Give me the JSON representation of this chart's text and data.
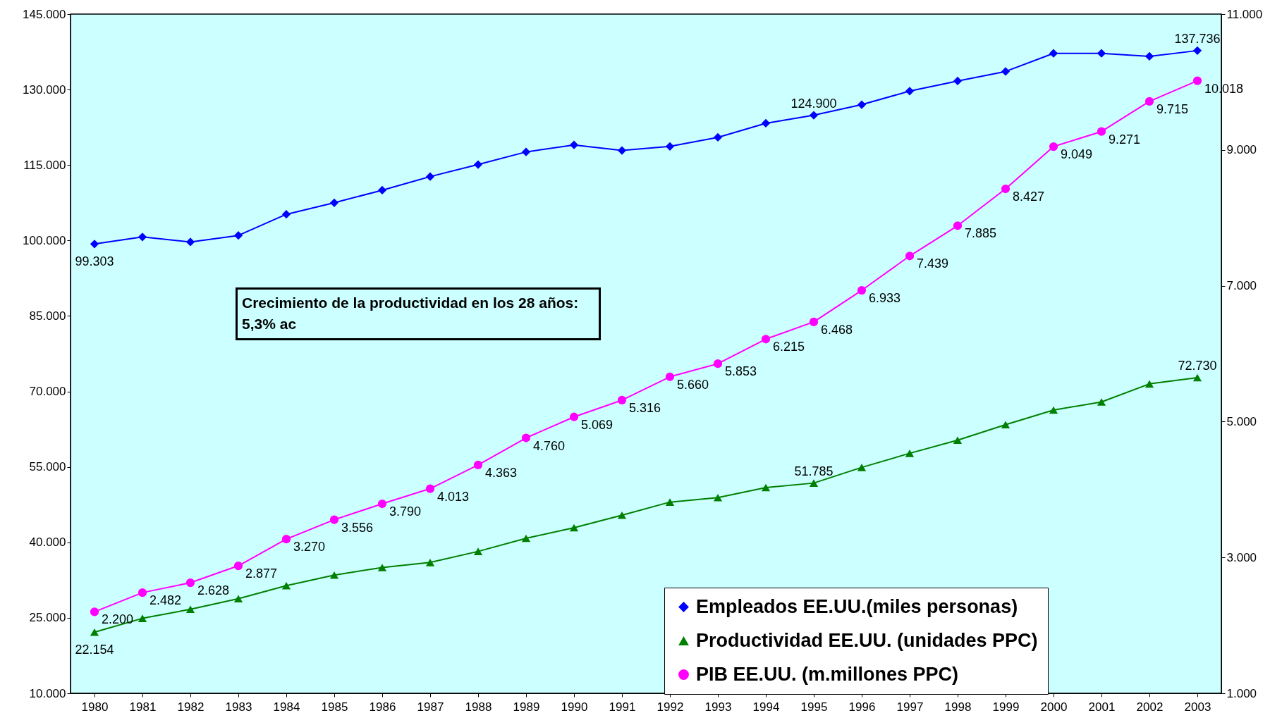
{
  "chart_data": {
    "type": "line",
    "categories": [
      "1980",
      "1981",
      "1982",
      "1983",
      "1984",
      "1985",
      "1986",
      "1987",
      "1988",
      "1989",
      "1990",
      "1991",
      "1992",
      "1993",
      "1994",
      "1995",
      "1996",
      "1997",
      "1998",
      "1999",
      "2000",
      "2001",
      "2002",
      "2003"
    ],
    "series": [
      {
        "name": "Empleados EE.UU.(miles personas)",
        "color": "#0000ff",
        "marker": "diamond",
        "values": [
          99303,
          100700,
          99700,
          101000,
          105200,
          107500,
          110000,
          112700,
          115100,
          117600,
          119000,
          117900,
          118700,
          120500,
          123300,
          124900,
          127000,
          129700,
          131700,
          133600,
          137200,
          137200,
          136600,
          137736
        ],
        "value_labels": [
          "99.303",
          null,
          null,
          null,
          null,
          null,
          null,
          null,
          null,
          null,
          null,
          null,
          null,
          null,
          null,
          "124.900",
          null,
          null,
          null,
          null,
          null,
          null,
          null,
          "137.736"
        ]
      },
      {
        "name": "Productividad EE.UU. (unidades PPC)",
        "color": "#008000",
        "marker": "triangle",
        "values": [
          22154,
          24900,
          26700,
          28800,
          31400,
          33500,
          35000,
          36000,
          38200,
          40800,
          42900,
          45400,
          48000,
          48900,
          50900,
          51785,
          54900,
          57700,
          60300,
          63400,
          66300,
          67900,
          71500,
          72730
        ],
        "value_labels": [
          "22.154",
          null,
          null,
          null,
          null,
          null,
          null,
          null,
          null,
          null,
          null,
          null,
          null,
          null,
          null,
          "51.785",
          null,
          null,
          null,
          null,
          null,
          null,
          null,
          "72.730"
        ]
      },
      {
        "name": "PIB EE.UU. (m.millones PPC)",
        "color": "#ff00ff",
        "marker": "circle",
        "axis": "y2",
        "values": [
          2200,
          2482,
          2628,
          2877,
          3270,
          3556,
          3790,
          4013,
          4363,
          4760,
          5069,
          5316,
          5660,
          5853,
          6215,
          6468,
          6933,
          7439,
          7885,
          8427,
          9049,
          9271,
          9715,
          10018
        ],
        "value_labels": [
          "2.200",
          "2.482",
          "2.628",
          "2.877",
          "3.270",
          "3.556",
          "3.790",
          "4.013",
          "4.363",
          "4.760",
          "5.069",
          "5.316",
          "5.660",
          "5.853",
          "6.215",
          "6.468",
          "6.933",
          "7.439",
          "7.885",
          "8.427",
          "9.049",
          "9.271",
          "9.715",
          "10.018"
        ]
      }
    ],
    "ylim": [
      10000,
      145000
    ],
    "yticks": [
      {
        "value": 10000,
        "label": "10.000"
      },
      {
        "value": 25000,
        "label": "25.000"
      },
      {
        "value": 40000,
        "label": "40.000"
      },
      {
        "value": 55000,
        "label": "55.000"
      },
      {
        "value": 70000,
        "label": "70.000"
      },
      {
        "value": 85000,
        "label": "85.000"
      },
      {
        "value": 100000,
        "label": "100.000"
      },
      {
        "value": 115000,
        "label": "115.000"
      },
      {
        "value": 130000,
        "label": "130.000"
      },
      {
        "value": 145000,
        "label": "145.000"
      }
    ],
    "y2lim": [
      1000,
      11000
    ],
    "y2ticks": [
      {
        "value": 1000,
        "label": "1.000"
      },
      {
        "value": 3000,
        "label": "3.000"
      },
      {
        "value": 5000,
        "label": "5.000"
      },
      {
        "value": 7000,
        "label": "7.000"
      },
      {
        "value": 9000,
        "label": "9.000"
      },
      {
        "value": 11000,
        "label": "11.000"
      }
    ],
    "annotations": [
      "Crecimiento de la productividad  en los 28 años: 5,3% ac"
    ],
    "legend": "bottom right",
    "grid": false,
    "line_style": "solid"
  }
}
